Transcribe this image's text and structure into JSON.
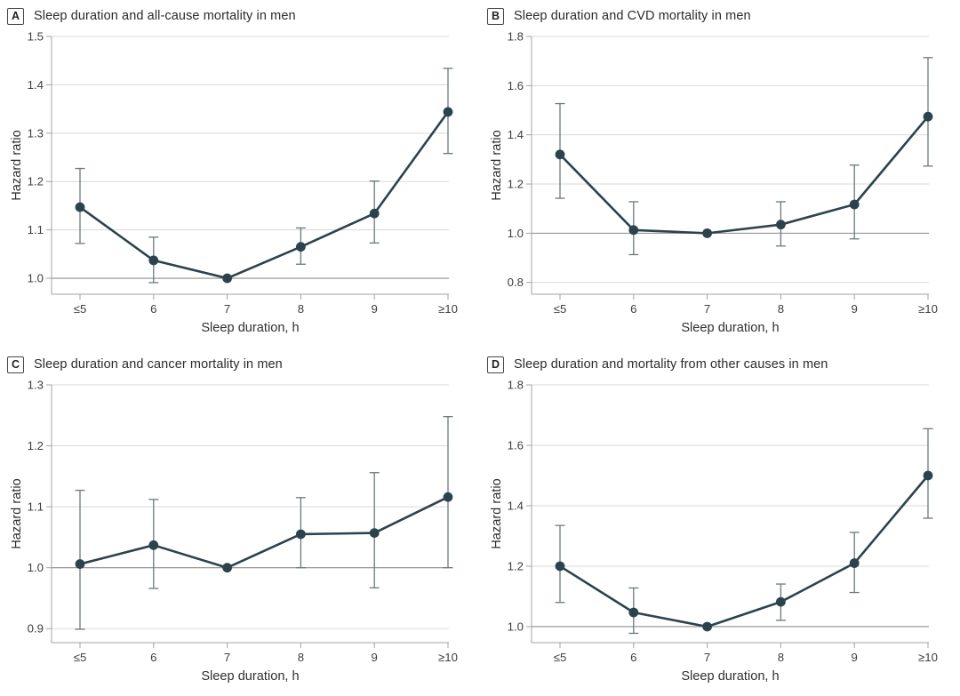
{
  "colors": {
    "line": "#2c434c",
    "marker": "#2c434c",
    "error_bar": "#6a797d",
    "grid": "#dadada",
    "ref_line": "#8f8f8f",
    "axis": "#a3a3a3",
    "tick_text": "#3d3d3d",
    "label_text": "#2f2f2f"
  },
  "chart_data": [
    {
      "type": "line",
      "panel_label": "A",
      "title": "Sleep duration and all-cause mortality in men",
      "xlabel": "Sleep duration, h",
      "ylabel": "Hazard ratio",
      "categories": [
        "≤5",
        "6",
        "7",
        "8",
        "9",
        "≥10"
      ],
      "values": [
        1.147,
        1.037,
        1.0,
        1.065,
        1.134,
        1.344
      ],
      "ci_low": [
        1.072,
        0.991,
        null,
        1.029,
        1.073,
        1.258
      ],
      "ci_high": [
        1.227,
        1.085,
        null,
        1.104,
        1.201,
        1.434
      ],
      "yticks": [
        1.0,
        1.1,
        1.2,
        1.3,
        1.4,
        1.5
      ],
      "ylim": [
        0.967,
        1.5
      ],
      "ref_y": 1.0,
      "grid": true,
      "legend": "none"
    },
    {
      "type": "line",
      "panel_label": "B",
      "title": "Sleep duration and CVD mortality in men",
      "xlabel": "Sleep duration, h",
      "ylabel": "Hazard ratio",
      "categories": [
        "≤5",
        "6",
        "7",
        "8",
        "9",
        "≥10"
      ],
      "values": [
        1.32,
        1.013,
        1.0,
        1.035,
        1.117,
        1.474
      ],
      "ci_low": [
        1.142,
        0.913,
        null,
        0.948,
        0.977,
        1.273
      ],
      "ci_high": [
        1.527,
        1.128,
        null,
        1.128,
        1.277,
        1.714
      ],
      "yticks": [
        0.8,
        1.0,
        1.2,
        1.4,
        1.6,
        1.8
      ],
      "ylim": [
        0.752,
        1.8
      ],
      "ref_y": 1.0,
      "grid": true,
      "legend": "none"
    },
    {
      "type": "line",
      "panel_label": "C",
      "title": "Sleep duration and cancer mortality in men",
      "xlabel": "Sleep duration, h",
      "ylabel": "Hazard ratio",
      "categories": [
        "≤5",
        "6",
        "7",
        "8",
        "9",
        "≥10"
      ],
      "values": [
        1.006,
        1.037,
        1.0,
        1.055,
        1.057,
        1.116
      ],
      "ci_low": [
        0.899,
        0.966,
        null,
        1.0,
        0.967,
        1.0
      ],
      "ci_high": [
        1.127,
        1.112,
        null,
        1.115,
        1.156,
        1.248
      ],
      "yticks": [
        0.9,
        1.0,
        1.1,
        1.2,
        1.3
      ],
      "ylim": [
        0.877,
        1.3
      ],
      "ref_y": 1.0,
      "grid": true,
      "legend": "none"
    },
    {
      "type": "line",
      "panel_label": "D",
      "title": "Sleep duration and mortality from other causes in men",
      "xlabel": "Sleep duration, h",
      "ylabel": "Hazard ratio",
      "categories": [
        "≤5",
        "6",
        "7",
        "8",
        "9",
        "≥10"
      ],
      "values": [
        1.2,
        1.047,
        1.0,
        1.082,
        1.21,
        1.5
      ],
      "ci_low": [
        1.08,
        0.978,
        null,
        1.021,
        1.113,
        1.359
      ],
      "ci_high": [
        1.335,
        1.128,
        null,
        1.141,
        1.312,
        1.655
      ],
      "yticks": [
        1.0,
        1.2,
        1.4,
        1.6,
        1.8
      ],
      "ylim": [
        0.947,
        1.8
      ],
      "ref_y": 1.0,
      "grid": true,
      "legend": "none"
    }
  ]
}
